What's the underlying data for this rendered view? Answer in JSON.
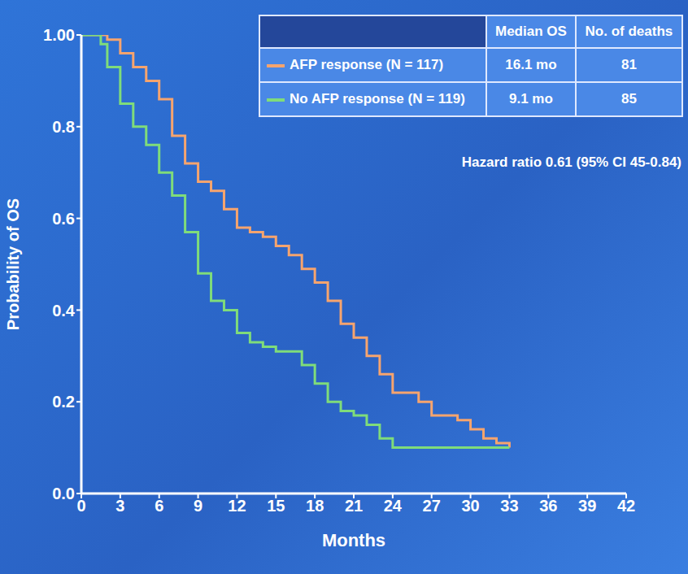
{
  "chart_data": {
    "type": "line",
    "x_label": "Months",
    "y_label": "Probability of OS",
    "grid": false,
    "x": [
      0,
      1.5,
      2,
      3,
      4,
      5,
      6,
      7,
      8,
      9,
      10,
      11,
      12,
      13,
      14,
      15,
      16,
      17,
      18,
      19,
      20,
      21,
      22,
      23,
      24,
      25,
      26,
      27,
      28,
      29,
      30,
      31,
      32,
      33
    ],
    "series": [
      {
        "name": "AFP response (N = 117)",
        "color": "#f6a46e",
        "line_style": "step",
        "median_os": "16.1 mo",
        "deaths": 81,
        "values": [
          1.0,
          1.0,
          0.99,
          0.96,
          0.93,
          0.9,
          0.86,
          0.78,
          0.72,
          0.68,
          0.66,
          0.62,
          0.58,
          0.57,
          0.56,
          0.54,
          0.52,
          0.49,
          0.46,
          0.42,
          0.37,
          0.34,
          0.3,
          0.26,
          0.22,
          0.22,
          0.2,
          0.17,
          0.17,
          0.16,
          0.14,
          0.12,
          0.11,
          0.1
        ]
      },
      {
        "name": "No AFP response (N = 119)",
        "color": "#7fdc7a",
        "line_style": "step",
        "median_os": "9.1 mo",
        "deaths": 85,
        "values": [
          1.0,
          0.98,
          0.93,
          0.85,
          0.8,
          0.76,
          0.7,
          0.65,
          0.57,
          0.48,
          0.42,
          0.4,
          0.35,
          0.33,
          0.32,
          0.31,
          0.31,
          0.28,
          0.24,
          0.2,
          0.18,
          0.17,
          0.15,
          0.12,
          0.1,
          0.1,
          0.1,
          0.1,
          0.1,
          0.1,
          0.1,
          0.1,
          0.1,
          0.1
        ]
      }
    ],
    "xlim": [
      0,
      42
    ],
    "xticks": [
      0,
      3,
      6,
      9,
      12,
      15,
      18,
      21,
      24,
      27,
      30,
      33,
      36,
      39,
      42
    ],
    "ylim": [
      0,
      1
    ],
    "yticks": [
      {
        "value": 0,
        "label": "0.0"
      },
      0.2,
      0.4,
      0.6,
      0.8,
      {
        "value": 1,
        "label": "1.00"
      }
    ],
    "table_headers": [
      "Median OS",
      "No. of deaths"
    ],
    "annotation": "Hazard ratio 0.61 (95% CI 45-0.84)"
  }
}
